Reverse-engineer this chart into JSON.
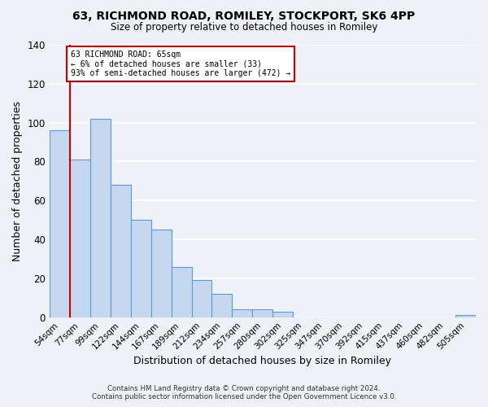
{
  "title": "63, RICHMOND ROAD, ROMILEY, STOCKPORT, SK6 4PP",
  "subtitle": "Size of property relative to detached houses in Romiley",
  "xlabel": "Distribution of detached houses by size in Romiley",
  "ylabel": "Number of detached properties",
  "bar_labels": [
    "54sqm",
    "77sqm",
    "99sqm",
    "122sqm",
    "144sqm",
    "167sqm",
    "189sqm",
    "212sqm",
    "234sqm",
    "257sqm",
    "280sqm",
    "302sqm",
    "325sqm",
    "347sqm",
    "370sqm",
    "392sqm",
    "415sqm",
    "437sqm",
    "460sqm",
    "482sqm",
    "505sqm"
  ],
  "bar_heights": [
    96,
    81,
    102,
    68,
    50,
    45,
    26,
    19,
    12,
    4,
    4,
    3,
    0,
    0,
    0,
    0,
    0,
    0,
    0,
    0,
    1
  ],
  "bar_color": "#c5d8f0",
  "bar_edge_color": "#5b9bd5",
  "annotation_text": "63 RICHMOND ROAD: 65sqm\n← 6% of detached houses are smaller (33)\n93% of semi-detached houses are larger (472) →",
  "annotation_box_color": "white",
  "annotation_box_edge_color": "#cc0000",
  "vline_color": "#cc0000",
  "ylim": [
    0,
    140
  ],
  "yticks": [
    0,
    20,
    40,
    60,
    80,
    100,
    120,
    140
  ],
  "footer_line1": "Contains HM Land Registry data © Crown copyright and database right 2024.",
  "footer_line2": "Contains public sector information licensed under the Open Government Licence v3.0.",
  "background_color": "#eef2f8",
  "grid_color": "white"
}
